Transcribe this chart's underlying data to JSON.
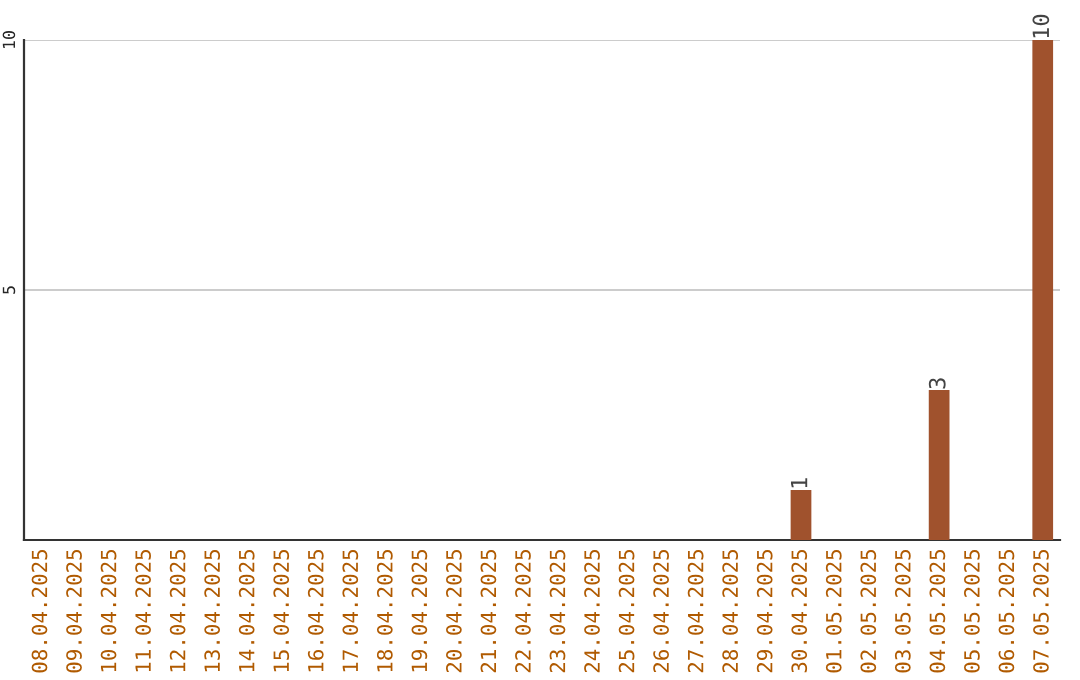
{
  "chart_data": {
    "type": "bar",
    "categories": [
      "08.04.2025",
      "09.04.2025",
      "10.04.2025",
      "11.04.2025",
      "12.04.2025",
      "13.04.2025",
      "14.04.2025",
      "15.04.2025",
      "16.04.2025",
      "17.04.2025",
      "18.04.2025",
      "19.04.2025",
      "20.04.2025",
      "21.04.2025",
      "22.04.2025",
      "23.04.2025",
      "24.04.2025",
      "25.04.2025",
      "26.04.2025",
      "27.04.2025",
      "28.04.2025",
      "29.04.2025",
      "30.04.2025",
      "01.05.2025",
      "02.05.2025",
      "03.05.2025",
      "04.05.2025",
      "05.05.2025",
      "06.05.2025",
      "07.05.2025"
    ],
    "values": [
      0,
      0,
      0,
      0,
      0,
      0,
      0,
      0,
      0,
      0,
      0,
      0,
      0,
      0,
      0,
      0,
      0,
      0,
      0,
      0,
      0,
      0,
      1,
      0,
      0,
      0,
      3,
      0,
      0,
      10
    ],
    "value_labels": [
      null,
      null,
      null,
      null,
      null,
      null,
      null,
      null,
      null,
      null,
      null,
      null,
      null,
      null,
      null,
      null,
      null,
      null,
      null,
      null,
      null,
      null,
      "1",
      null,
      null,
      null,
      "3",
      null,
      null,
      "10"
    ],
    "color": "#a0522d",
    "ylim": [
      0,
      10
    ],
    "yticks": [
      5,
      10
    ],
    "grid": "y",
    "legend": false
  }
}
